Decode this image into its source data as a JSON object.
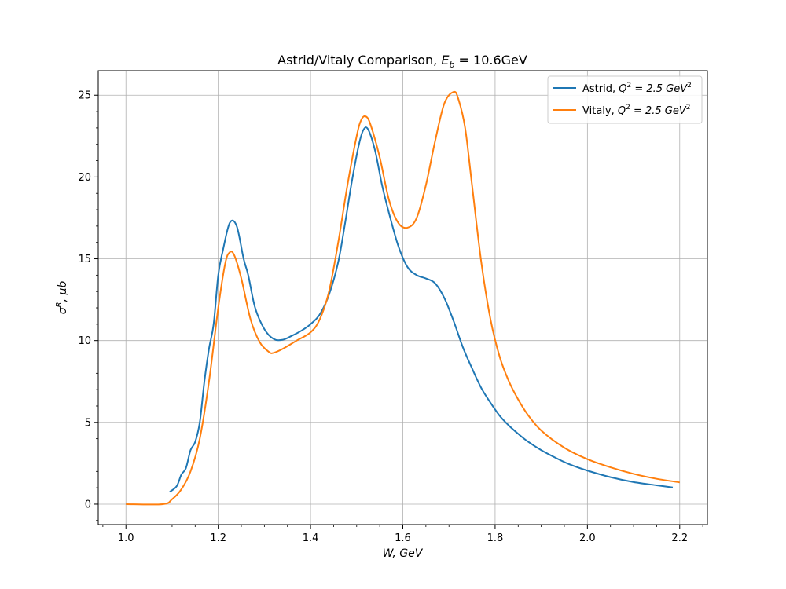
{
  "chart_data": {
    "type": "line",
    "title": "Astrid/Vitaly Comparison, E_b = 10.6GeV",
    "title_parts": {
      "prefix": "Astrid/Vitaly Comparison, ",
      "var": "E",
      "sub": "b",
      "suffix": " = 10.6GeV"
    },
    "xlabel": "W, GeV",
    "ylabel": "σR, μb",
    "xlim": [
      0.94,
      2.26
    ],
    "ylim": [
      -1.25,
      26.5
    ],
    "xticks": [
      "1.0",
      "1.2",
      "1.4",
      "1.6",
      "1.8",
      "2.0",
      "2.2"
    ],
    "yticks": [
      "0",
      "5",
      "10",
      "15",
      "20",
      "25"
    ],
    "grid": true,
    "legend_position": "top-right",
    "series": [
      {
        "name": "Astrid, Q2 = 2.5 GeV2",
        "legend_label": {
          "prefix": "Astrid, ",
          "q": "Q",
          "sup1": "2",
          "mid": " = 2.5 GeV",
          "sup2": "2"
        },
        "color": "#1f77b4",
        "points": [
          [
            1.095,
            0.75
          ],
          [
            1.11,
            1.1
          ],
          [
            1.12,
            1.8
          ],
          [
            1.13,
            2.2
          ],
          [
            1.14,
            3.3
          ],
          [
            1.15,
            3.8
          ],
          [
            1.16,
            5.0
          ],
          [
            1.17,
            7.5
          ],
          [
            1.18,
            9.5
          ],
          [
            1.19,
            11.0
          ],
          [
            1.2,
            14.0
          ],
          [
            1.21,
            15.5
          ],
          [
            1.225,
            17.2
          ],
          [
            1.24,
            17.0
          ],
          [
            1.255,
            15.0
          ],
          [
            1.265,
            14.0
          ],
          [
            1.28,
            12.0
          ],
          [
            1.3,
            10.7
          ],
          [
            1.32,
            10.1
          ],
          [
            1.34,
            10.05
          ],
          [
            1.36,
            10.3
          ],
          [
            1.38,
            10.6
          ],
          [
            1.4,
            11.0
          ],
          [
            1.42,
            11.6
          ],
          [
            1.44,
            12.8
          ],
          [
            1.46,
            14.8
          ],
          [
            1.475,
            17.2
          ],
          [
            1.49,
            19.8
          ],
          [
            1.505,
            22.0
          ],
          [
            1.515,
            22.9
          ],
          [
            1.525,
            22.9
          ],
          [
            1.54,
            21.6
          ],
          [
            1.555,
            19.5
          ],
          [
            1.57,
            17.8
          ],
          [
            1.59,
            15.8
          ],
          [
            1.61,
            14.5
          ],
          [
            1.63,
            14.0
          ],
          [
            1.65,
            13.8
          ],
          [
            1.67,
            13.5
          ],
          [
            1.69,
            12.6
          ],
          [
            1.71,
            11.2
          ],
          [
            1.73,
            9.6
          ],
          [
            1.75,
            8.3
          ],
          [
            1.77,
            7.1
          ],
          [
            1.79,
            6.2
          ],
          [
            1.81,
            5.4
          ],
          [
            1.83,
            4.8
          ],
          [
            1.85,
            4.3
          ],
          [
            1.87,
            3.85
          ],
          [
            1.9,
            3.3
          ],
          [
            1.93,
            2.85
          ],
          [
            1.96,
            2.45
          ],
          [
            2.0,
            2.05
          ],
          [
            2.05,
            1.65
          ],
          [
            2.1,
            1.35
          ],
          [
            2.15,
            1.15
          ],
          [
            2.185,
            1.02
          ]
        ]
      },
      {
        "name": "Vitaly, Q2 = 2.5 GeV2",
        "legend_label": {
          "prefix": "Vitaly, ",
          "q": "Q",
          "sup1": "2",
          "mid": " = 2.5 GeV",
          "sup2": "2"
        },
        "color": "#ff7f0e",
        "points": [
          [
            1.0,
            0.0
          ],
          [
            1.08,
            0.0
          ],
          [
            1.1,
            0.3
          ],
          [
            1.12,
            0.9
          ],
          [
            1.14,
            2.0
          ],
          [
            1.16,
            4.0
          ],
          [
            1.18,
            7.5
          ],
          [
            1.2,
            12.0
          ],
          [
            1.215,
            14.7
          ],
          [
            1.225,
            15.4
          ],
          [
            1.235,
            15.2
          ],
          [
            1.25,
            13.8
          ],
          [
            1.27,
            11.3
          ],
          [
            1.29,
            9.9
          ],
          [
            1.31,
            9.3
          ],
          [
            1.32,
            9.25
          ],
          [
            1.34,
            9.5
          ],
          [
            1.37,
            10.0
          ],
          [
            1.4,
            10.5
          ],
          [
            1.42,
            11.3
          ],
          [
            1.44,
            13.0
          ],
          [
            1.46,
            16.0
          ],
          [
            1.48,
            19.5
          ],
          [
            1.5,
            22.5
          ],
          [
            1.51,
            23.5
          ],
          [
            1.52,
            23.7
          ],
          [
            1.53,
            23.2
          ],
          [
            1.55,
            21.2
          ],
          [
            1.57,
            18.6
          ],
          [
            1.59,
            17.2
          ],
          [
            1.61,
            16.9
          ],
          [
            1.63,
            17.5
          ],
          [
            1.65,
            19.5
          ],
          [
            1.67,
            22.2
          ],
          [
            1.69,
            24.5
          ],
          [
            1.71,
            25.2
          ],
          [
            1.72,
            24.8
          ],
          [
            1.735,
            23.0
          ],
          [
            1.75,
            19.5
          ],
          [
            1.77,
            14.8
          ],
          [
            1.79,
            11.3
          ],
          [
            1.81,
            9.0
          ],
          [
            1.83,
            7.5
          ],
          [
            1.85,
            6.4
          ],
          [
            1.87,
            5.5
          ],
          [
            1.9,
            4.5
          ],
          [
            1.95,
            3.45
          ],
          [
            2.0,
            2.75
          ],
          [
            2.05,
            2.25
          ],
          [
            2.1,
            1.85
          ],
          [
            2.15,
            1.55
          ],
          [
            2.2,
            1.33
          ]
        ]
      }
    ]
  }
}
